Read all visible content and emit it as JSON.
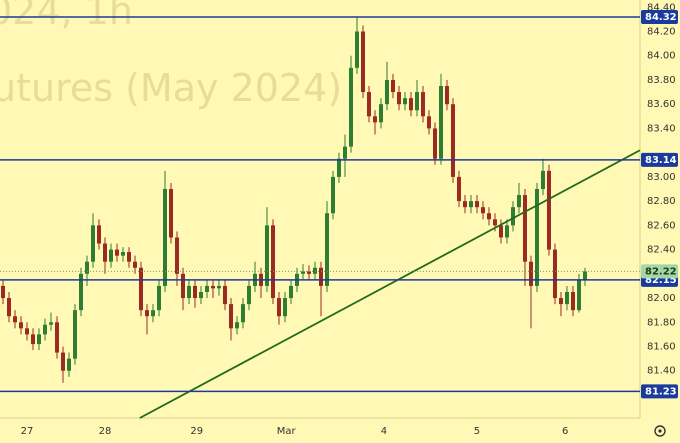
{
  "chart_data": {
    "type": "candlestick",
    "watermark": [
      "024, 1h",
      "utures (May 2024)"
    ],
    "xlim": [
      -0.5,
      106.17
    ],
    "xticks": [
      {
        "value": 4,
        "label": "27"
      },
      {
        "value": 17,
        "label": "28"
      },
      {
        "value": 32.3,
        "label": "29"
      },
      {
        "value": 47.2,
        "label": "Mar"
      },
      {
        "value": 63.5,
        "label": "4"
      },
      {
        "value": 79,
        "label": "5"
      },
      {
        "value": 93.7,
        "label": "6"
      }
    ],
    "ylim": [
      81.01,
      84.46
    ],
    "yticks": [
      {
        "value": 81.4,
        "label": "81.40"
      },
      {
        "value": 81.6,
        "label": "81.60"
      },
      {
        "value": 81.8,
        "label": "81.80"
      },
      {
        "value": 82.0,
        "label": "82.00"
      },
      {
        "value": 82.4,
        "label": "82.40"
      },
      {
        "value": 82.6,
        "label": "82.60"
      },
      {
        "value": 82.8,
        "label": "82.80"
      },
      {
        "value": 83.0,
        "label": "83.00"
      },
      {
        "value": 83.4,
        "label": "83.40"
      },
      {
        "value": 83.6,
        "label": "83.60"
      },
      {
        "value": 83.8,
        "label": "83.80"
      },
      {
        "value": 84.0,
        "label": "84.00"
      },
      {
        "value": 84.2,
        "label": "84.20"
      },
      {
        "value": 84.4,
        "label": "84.40"
      }
    ],
    "up_color": "#2e7d32",
    "down_color": "#9b2a22",
    "open": [
      82.1,
      82.0,
      81.85,
      81.8,
      81.75,
      81.7,
      81.62,
      81.7,
      81.78,
      81.8,
      81.55,
      81.4,
      81.5,
      81.9,
      82.2,
      82.3,
      82.6,
      82.45,
      82.3,
      82.4,
      82.35,
      82.38,
      82.3,
      82.25,
      81.9,
      81.85,
      81.9,
      82.1,
      82.9,
      82.5,
      82.2,
      82.0,
      82.1,
      82.0,
      82.05,
      82.1,
      82.08,
      82.1,
      81.95,
      81.75,
      81.8,
      81.95,
      82.1,
      82.2,
      82.1,
      82.6,
      82.0,
      81.85,
      82.0,
      82.1,
      82.2,
      82.22,
      82.2,
      82.25,
      82.1,
      82.7,
      83.0,
      83.15,
      83.25,
      83.9,
      84.2,
      83.7,
      83.5,
      83.45,
      83.6,
      83.8,
      83.7,
      83.6,
      83.65,
      83.55,
      83.7,
      83.5,
      83.4,
      83.15,
      83.75,
      83.6,
      83.0,
      82.8,
      82.75,
      82.8,
      82.75,
      82.7,
      82.65,
      82.6,
      82.5,
      82.6,
      82.75,
      82.85,
      82.3,
      82.1,
      82.9,
      83.05,
      82.4,
      82.0,
      81.95,
      82.05,
      81.9,
      82.15
    ],
    "high": [
      82.15,
      82.05,
      81.9,
      81.85,
      81.8,
      81.75,
      81.75,
      81.83,
      81.88,
      81.85,
      81.6,
      81.55,
      81.95,
      82.25,
      82.35,
      82.7,
      82.65,
      82.5,
      82.45,
      82.45,
      82.42,
      82.42,
      82.35,
      82.3,
      81.95,
      81.95,
      82.15,
      83.05,
      82.95,
      82.55,
      82.25,
      82.15,
      82.15,
      82.1,
      82.15,
      82.15,
      82.15,
      82.15,
      82.0,
      81.85,
      82.0,
      82.15,
      82.3,
      82.25,
      82.75,
      82.65,
      82.05,
      82.05,
      82.15,
      82.25,
      82.28,
      82.27,
      82.3,
      82.3,
      82.8,
      83.05,
      83.2,
      83.35,
      84.0,
      84.32,
      84.25,
      83.75,
      83.55,
      83.65,
      83.95,
      83.85,
      83.75,
      83.7,
      83.7,
      83.8,
      83.75,
      83.55,
      83.45,
      83.85,
      83.8,
      83.65,
      83.05,
      82.85,
      82.85,
      82.85,
      82.8,
      82.75,
      82.7,
      82.65,
      82.65,
      82.8,
      82.95,
      82.9,
      82.35,
      82.95,
      83.15,
      83.1,
      82.45,
      82.05,
      82.1,
      82.1,
      82.2,
      82.25
    ],
    "low": [
      81.95,
      81.8,
      81.75,
      81.7,
      81.65,
      81.57,
      81.57,
      81.65,
      81.73,
      81.5,
      81.3,
      81.35,
      81.45,
      81.85,
      82.1,
      82.25,
      82.4,
      82.2,
      82.25,
      82.3,
      82.3,
      82.25,
      82.2,
      81.85,
      81.7,
      81.8,
      81.85,
      82.05,
      82.45,
      82.1,
      81.9,
      81.95,
      81.92,
      81.95,
      82.0,
      82.0,
      82.02,
      81.9,
      81.65,
      81.7,
      81.75,
      81.9,
      82.05,
      82.0,
      82.05,
      81.95,
      81.78,
      81.8,
      81.95,
      82.05,
      82.15,
      82.15,
      82.15,
      81.85,
      82.05,
      82.65,
      82.95,
      83.0,
      83.2,
      83.85,
      83.65,
      83.45,
      83.35,
      83.4,
      83.55,
      83.65,
      83.55,
      83.55,
      83.5,
      83.5,
      83.45,
      83.35,
      83.1,
      83.1,
      83.55,
      82.95,
      82.75,
      82.7,
      82.7,
      82.7,
      82.65,
      82.6,
      82.55,
      82.45,
      82.45,
      82.55,
      82.7,
      82.1,
      81.75,
      82.05,
      82.85,
      82.35,
      81.95,
      81.85,
      81.9,
      81.85,
      81.88,
      82.1
    ],
    "close": [
      82.0,
      81.85,
      81.8,
      81.75,
      81.7,
      81.62,
      81.7,
      81.78,
      81.8,
      81.55,
      81.4,
      81.5,
      81.9,
      82.2,
      82.3,
      82.6,
      82.45,
      82.3,
      82.4,
      82.35,
      82.38,
      82.3,
      82.25,
      81.9,
      81.85,
      81.9,
      82.1,
      82.9,
      82.5,
      82.2,
      82.0,
      82.1,
      82.0,
      82.05,
      82.1,
      82.08,
      82.1,
      81.95,
      81.75,
      81.8,
      81.95,
      82.1,
      82.2,
      82.1,
      82.6,
      82.0,
      81.85,
      82.0,
      82.1,
      82.2,
      82.22,
      82.2,
      82.25,
      82.1,
      82.7,
      83.0,
      83.15,
      83.25,
      83.9,
      84.2,
      83.7,
      83.5,
      83.45,
      83.6,
      83.8,
      83.7,
      83.6,
      83.65,
      83.55,
      83.7,
      83.5,
      83.4,
      83.15,
      83.75,
      83.6,
      83.0,
      82.8,
      82.75,
      82.8,
      82.75,
      82.7,
      82.65,
      82.6,
      82.5,
      82.6,
      82.75,
      82.85,
      82.3,
      82.1,
      82.9,
      83.05,
      82.4,
      82.0,
      81.95,
      82.05,
      81.9,
      82.15,
      82.22
    ],
    "levels": [
      84.32,
      83.14,
      82.15,
      81.23
    ],
    "level_color": "#1a3a9e",
    "last_price": 82.22,
    "last_color": "#a5d6a7",
    "trend_line": {
      "from": [
        22.8,
        81.01
      ],
      "to": [
        106.17,
        83.22
      ],
      "color": "#1e6b1e"
    }
  }
}
